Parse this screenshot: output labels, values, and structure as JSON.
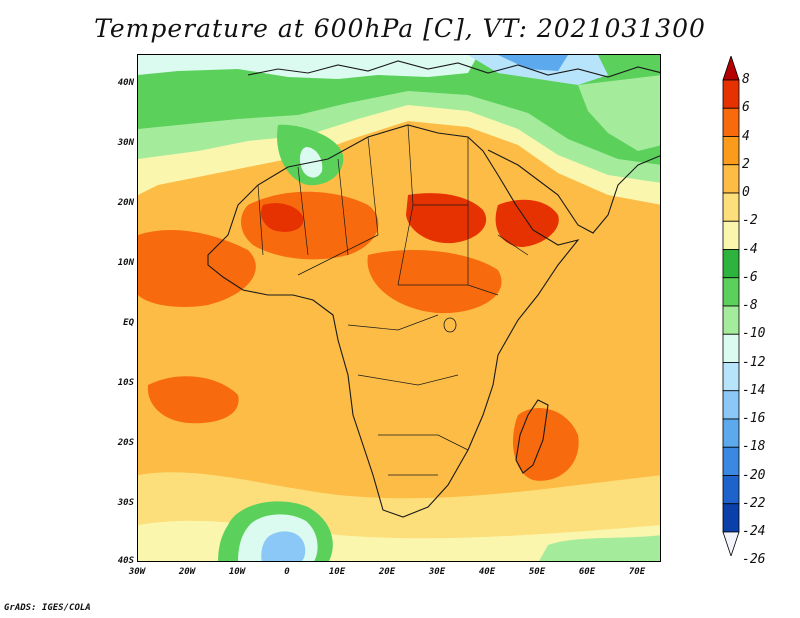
{
  "title": "Temperature at 600hPa [C], VT: 2021031300",
  "footer": "GrADS: IGES/COLA",
  "lat_labels": [
    "40N",
    "30N",
    "20N",
    "10N",
    "EQ",
    "10S",
    "20S",
    "30S",
    "40S"
  ],
  "lon_labels": [
    "30W",
    "20W",
    "10W",
    "0",
    "10E",
    "20E",
    "30E",
    "40E",
    "50E",
    "60E",
    "70E"
  ],
  "colorbar": {
    "labels": [
      "8",
      "6",
      "4",
      "2",
      "0",
      "-2",
      "-4",
      "-6",
      "-8",
      "-10",
      "-12",
      "-14",
      "-16",
      "-18",
      "-20",
      "-22",
      "-24",
      "-26"
    ],
    "colors": [
      "#b40000",
      "#e63200",
      "#f86a0e",
      "#fb9b1c",
      "#fcbc46",
      "#fcdf7a",
      "#fbf6ae",
      "#2fb33f",
      "#5bd15b",
      "#a4ec9c",
      "#dcfbf0",
      "#b7e3fb",
      "#8cc8f7",
      "#5da9ee",
      "#3b88e3",
      "#1e63cc",
      "#0b40ab",
      "#081e7e"
    ]
  },
  "colors": {
    "ocean_base": "#fcbc46",
    "warm": "#f86a0e",
    "hot": "#e63200",
    "mild": "#fcdf7a",
    "pale": "#fbf6ae",
    "green_dark": "#2fb33f",
    "green": "#5bd15b",
    "green_light": "#a4ec9c",
    "cyan": "#dcfbf0",
    "blue_light": "#b7e3fb",
    "blue": "#8cc8f7",
    "blue_mid": "#5da9ee",
    "blue_dark": "#3b88e3"
  }
}
